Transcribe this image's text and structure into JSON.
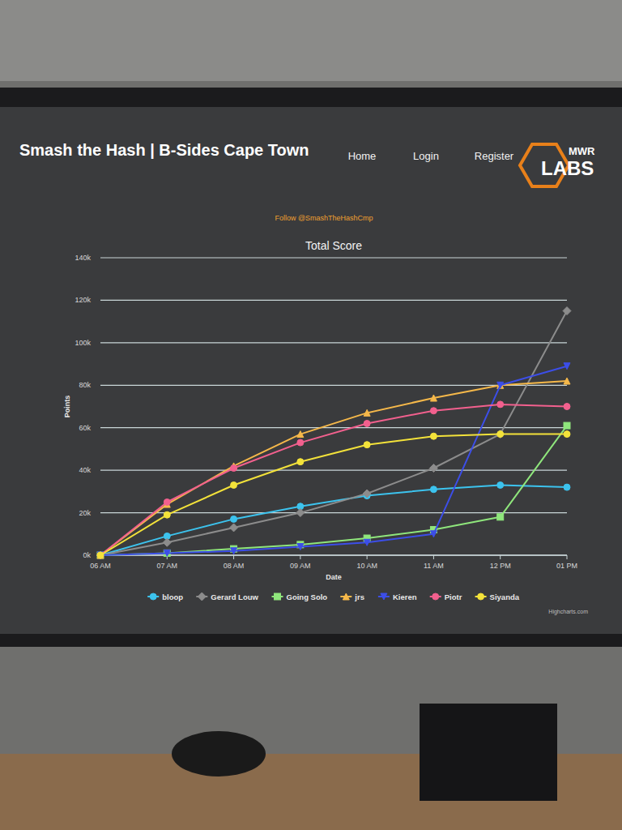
{
  "page": {
    "header_title": "Smash the Hash | B-Sides Cape Town",
    "nav": [
      "Home",
      "Login",
      "Register"
    ],
    "logo": [
      "MWR",
      "LABS"
    ],
    "follow": "Follow @SmashTheHashCmp",
    "credits": "Highcharts.com"
  },
  "chart_data": {
    "type": "line",
    "title": "Total Score",
    "x_label": "Date",
    "y_label": "Points",
    "categories": [
      "06 AM",
      "07 AM",
      "08 AM",
      "09 AM",
      "10 AM",
      "11 AM",
      "12 PM",
      "01 PM"
    ],
    "series": [
      {
        "name": "bloop",
        "color": "#3cc3ee",
        "marker": "circle",
        "values": [
          0,
          9000,
          17000,
          23000,
          28000,
          31000,
          33000,
          32000
        ]
      },
      {
        "name": "Gerard Louw",
        "color": "#8c8c8c",
        "marker": "diamond",
        "values": [
          0,
          6000,
          13000,
          20000,
          29000,
          41000,
          57000,
          115000
        ]
      },
      {
        "name": "Going Solo",
        "color": "#8fe67c",
        "marker": "square",
        "values": [
          0,
          1000,
          3000,
          5000,
          8000,
          12000,
          18000,
          61000
        ]
      },
      {
        "name": "jrs",
        "color": "#f5b84a",
        "marker": "triangle",
        "values": [
          0,
          24000,
          42000,
          57000,
          67000,
          74000,
          80000,
          82000
        ]
      },
      {
        "name": "Kieren",
        "color": "#3c4ee8",
        "marker": "triangle-down",
        "values": [
          0,
          1000,
          2000,
          4000,
          6000,
          10000,
          80000,
          89000
        ]
      },
      {
        "name": "Piotr",
        "color": "#f2608e",
        "marker": "circle",
        "values": [
          0,
          25000,
          41000,
          53000,
          62000,
          68000,
          71000,
          70000
        ]
      },
      {
        "name": "Siyanda",
        "color": "#f3e23a",
        "marker": "circle",
        "values": [
          0,
          19000,
          33000,
          44000,
          52000,
          56000,
          57000,
          57000
        ]
      }
    ],
    "ylim": [
      0,
      140000
    ],
    "yticks": [
      {
        "value": 0,
        "label": "0k"
      },
      {
        "value": 20000,
        "label": "20k"
      },
      {
        "value": 40000,
        "label": "40k"
      },
      {
        "value": 60000,
        "label": "60k"
      },
      {
        "value": 80000,
        "label": "80k"
      },
      {
        "value": 100000,
        "label": "100k"
      },
      {
        "value": 120000,
        "label": "120k"
      },
      {
        "value": 140000,
        "label": "140k"
      }
    ],
    "grid": true,
    "legend": "bottom"
  }
}
